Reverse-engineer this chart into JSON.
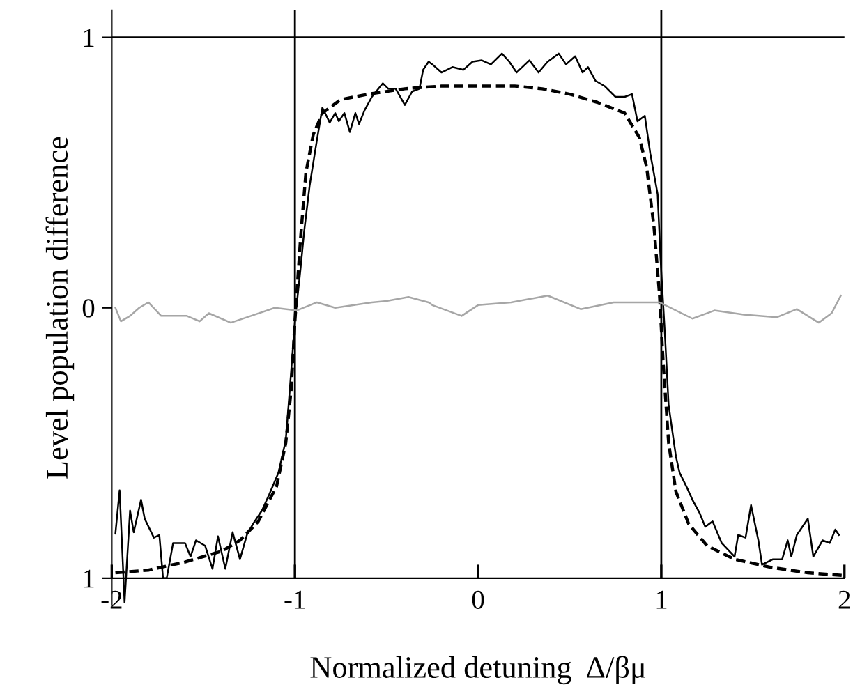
{
  "chart_data": {
    "type": "line",
    "xlabel": "Normalized detuning  Δ/βμ",
    "ylabel": "Level population difference",
    "xlim": [
      -2,
      2
    ],
    "ylim": [
      -1.1,
      1.1
    ],
    "xticks": [
      -2,
      -1,
      0,
      1,
      2
    ],
    "yticks": [
      {
        "value": -1,
        "label": "1"
      },
      0,
      1
    ],
    "grid": false,
    "legend": false,
    "marker": "none",
    "ref_lines": [
      {
        "axis": "y",
        "value": 1,
        "color": "#000000",
        "line_style": "solid"
      },
      {
        "axis": "x",
        "value": -1,
        "color": "#000000",
        "line_style": "solid"
      },
      {
        "axis": "x",
        "value": 1,
        "color": "#000000",
        "line_style": "solid"
      }
    ],
    "series": [
      {
        "color": "#000000",
        "line_style": "solid",
        "x": [
          -1.98,
          -1.957,
          -1.93,
          -1.9,
          -1.88,
          -1.84,
          -1.82,
          -1.77,
          -1.74,
          -1.72,
          -1.7,
          -1.665,
          -1.6,
          -1.57,
          -1.54,
          -1.49,
          -1.45,
          -1.42,
          -1.38,
          -1.34,
          -1.3,
          -1.26,
          -1.22,
          -1.18,
          -1.14,
          -1.09,
          -1.05,
          -1.03,
          -1.0,
          -0.97,
          -0.95,
          -0.92,
          -0.88,
          -0.85,
          -0.81,
          -0.78,
          -0.76,
          -0.73,
          -0.7,
          -0.67,
          -0.65,
          -0.62,
          -0.58,
          -0.52,
          -0.49,
          -0.45,
          -0.4,
          -0.36,
          -0.32,
          -0.3,
          -0.27,
          -0.25,
          -0.2,
          -0.14,
          -0.08,
          -0.03,
          0.02,
          0.07,
          0.13,
          0.17,
          0.21,
          0.28,
          0.33,
          0.38,
          0.44,
          0.48,
          0.53,
          0.57,
          0.6,
          0.64,
          0.69,
          0.75,
          0.8,
          0.84,
          0.87,
          0.91,
          0.94,
          0.98,
          0.996,
          1.02,
          1.04,
          1.08,
          1.1,
          1.14,
          1.17,
          1.21,
          1.24,
          1.28,
          1.33,
          1.4,
          1.42,
          1.46,
          1.49,
          1.53,
          1.55,
          1.61,
          1.66,
          1.69,
          1.71,
          1.74,
          1.8,
          1.83,
          1.88,
          1.92,
          1.95,
          1.97
        ],
        "values": [
          -0.835,
          -0.675,
          -1.09,
          -0.75,
          -0.83,
          -0.71,
          -0.78,
          -0.85,
          -0.84,
          -1.0,
          -1.0,
          -0.87,
          -0.87,
          -0.92,
          -0.86,
          -0.88,
          -0.965,
          -0.845,
          -0.965,
          -0.83,
          -0.93,
          -0.835,
          -0.79,
          -0.75,
          -0.69,
          -0.61,
          -0.49,
          -0.32,
          -0.05,
          0.14,
          0.28,
          0.45,
          0.62,
          0.74,
          0.685,
          0.72,
          0.69,
          0.72,
          0.65,
          0.72,
          0.68,
          0.73,
          0.78,
          0.83,
          0.81,
          0.81,
          0.75,
          0.8,
          0.81,
          0.88,
          0.91,
          0.9,
          0.87,
          0.89,
          0.88,
          0.91,
          0.915,
          0.9,
          0.94,
          0.91,
          0.87,
          0.915,
          0.87,
          0.91,
          0.94,
          0.9,
          0.93,
          0.87,
          0.89,
          0.84,
          0.82,
          0.78,
          0.78,
          0.79,
          0.69,
          0.71,
          0.57,
          0.42,
          0.18,
          -0.1,
          -0.36,
          -0.55,
          -0.61,
          -0.665,
          -0.71,
          -0.76,
          -0.81,
          -0.79,
          -0.87,
          -0.92,
          -0.84,
          -0.85,
          -0.73,
          -0.86,
          -0.95,
          -0.93,
          -0.93,
          -0.86,
          -0.92,
          -0.84,
          -0.78,
          -0.92,
          -0.86,
          -0.87,
          -0.82,
          -0.84
        ]
      },
      {
        "color": "#000000",
        "line_style": "dashed",
        "x": [
          -1.98,
          -1.8,
          -1.6,
          -1.4,
          -1.3,
          -1.2,
          -1.1,
          -1.05,
          -1.02,
          -1.0,
          -0.97,
          -0.94,
          -0.9,
          -0.85,
          -0.75,
          -0.6,
          -0.4,
          -0.2,
          0.0,
          0.2,
          0.35,
          0.5,
          0.65,
          0.8,
          0.88,
          0.92,
          0.96,
          0.99,
          1.01,
          1.04,
          1.08,
          1.15,
          1.25,
          1.4,
          1.6,
          1.8,
          2.0
        ],
        "values": [
          -0.98,
          -0.97,
          -0.94,
          -0.9,
          -0.86,
          -0.79,
          -0.66,
          -0.5,
          -0.3,
          -0.05,
          0.25,
          0.5,
          0.64,
          0.72,
          0.77,
          0.79,
          0.81,
          0.82,
          0.82,
          0.82,
          0.81,
          0.79,
          0.76,
          0.72,
          0.63,
          0.52,
          0.3,
          0.05,
          -0.2,
          -0.5,
          -0.68,
          -0.8,
          -0.88,
          -0.93,
          -0.96,
          -0.98,
          -0.99
        ]
      },
      {
        "color": "#a6a6a6",
        "line_style": "solid",
        "x": [
          -1.98,
          -1.95,
          -1.9,
          -1.85,
          -1.8,
          -1.73,
          -1.59,
          -1.52,
          -1.47,
          -1.35,
          -1.24,
          -1.11,
          -0.99,
          -0.88,
          -0.78,
          -0.58,
          -0.5,
          -0.38,
          -0.27,
          -0.25,
          -0.09,
          0.0,
          0.18,
          0.38,
          0.56,
          0.74,
          0.99,
          1.17,
          1.29,
          1.45,
          1.63,
          1.74,
          1.86,
          1.93,
          1.98
        ],
        "values": [
          0.0,
          -0.05,
          -0.03,
          0.0,
          0.02,
          -0.03,
          -0.03,
          -0.05,
          -0.02,
          -0.055,
          -0.03,
          0.0,
          -0.01,
          0.02,
          0.0,
          0.02,
          0.025,
          0.04,
          0.02,
          0.01,
          -0.03,
          0.01,
          0.02,
          0.045,
          -0.005,
          0.02,
          0.02,
          -0.04,
          -0.01,
          -0.025,
          -0.035,
          -0.005,
          -0.055,
          -0.02,
          0.045
        ]
      }
    ]
  }
}
